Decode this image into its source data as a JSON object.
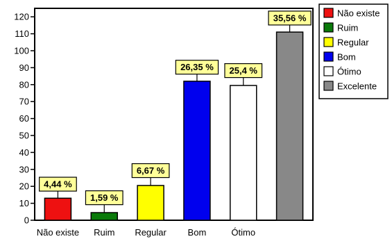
{
  "chart_data": {
    "type": "bar",
    "categories": [
      "Não existe",
      "Ruim",
      "Regular",
      "Bom",
      "Ótimo",
      "Excelente"
    ],
    "category_labels": [
      "Não existe",
      "Ruim",
      "Regular",
      "Bom",
      "Ótimo",
      ""
    ],
    "values": [
      13,
      4.5,
      20.5,
      82,
      79.5,
      111
    ],
    "data_labels": [
      "4,44 %",
      "1,59 %",
      "6,67 %",
      "26,35 %",
      "25,4 %",
      "35,56 %"
    ],
    "colors": [
      "#ee1111",
      "#0a7a0a",
      "#ffff00",
      "#0000ee",
      "#ffffff",
      "#888888"
    ],
    "ylim": [
      0,
      125
    ],
    "yticks": [
      0,
      10,
      20,
      30,
      40,
      50,
      60,
      70,
      80,
      90,
      100,
      110,
      120
    ],
    "grid": false,
    "error_bar_max": [
      18,
      10,
      26,
      87,
      85,
      116
    ],
    "legend": {
      "placement": "right",
      "entries": [
        "Não existe",
        "Ruim",
        "Regular",
        "Bom",
        "Ótimo",
        "Excelente"
      ]
    }
  }
}
